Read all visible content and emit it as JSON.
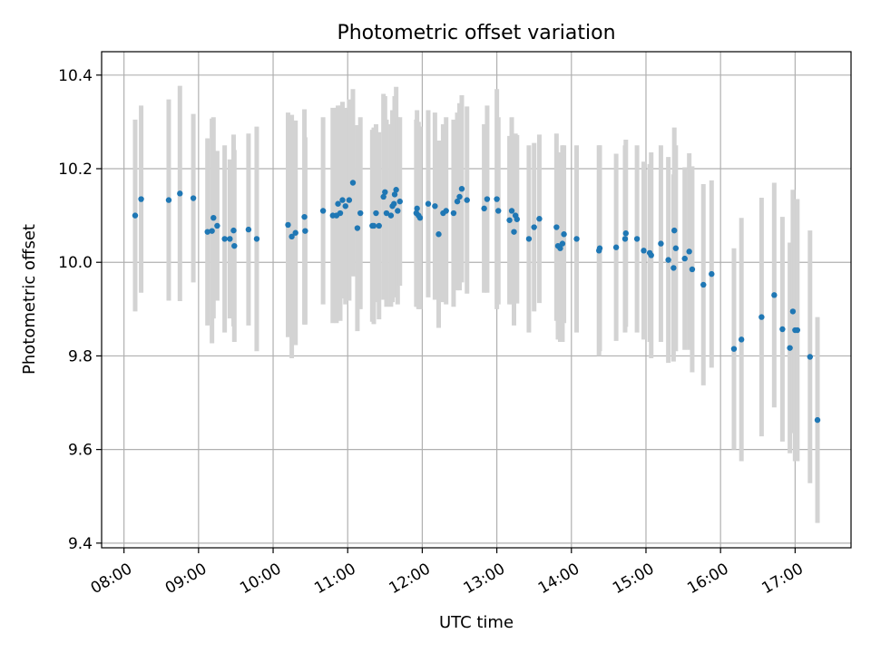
{
  "chart_data": {
    "type": "scatter",
    "title": "Photometric offset variation",
    "xlabel": "UTC time",
    "ylabel": "Photometric offset",
    "x_unit": "hours UTC",
    "xlim": [
      7.7,
      17.75
    ],
    "ylim": [
      9.39,
      10.45
    ],
    "xticks": [
      8,
      9,
      10,
      11,
      12,
      13,
      14,
      15,
      16,
      17
    ],
    "xtick_labels": [
      "08:00",
      "09:00",
      "10:00",
      "11:00",
      "12:00",
      "13:00",
      "14:00",
      "15:00",
      "16:00",
      "17:00"
    ],
    "yticks": [
      9.4,
      9.6,
      9.8,
      10.0,
      10.2,
      10.4
    ],
    "ytick_labels": [
      "9.4",
      "9.6",
      "9.8",
      "10.0",
      "10.2",
      "10.4"
    ],
    "grid": true,
    "colors": {
      "points": "#1f77b4",
      "errorbars": "#d3d3d3",
      "grid": "#b0b0b0",
      "axes": "#000000"
    },
    "series": [
      {
        "x": [
          8.15,
          8.23,
          8.6,
          8.75,
          8.93,
          9.12,
          9.18,
          9.2,
          9.25,
          9.35,
          9.42,
          9.47,
          9.48,
          9.67,
          9.78,
          10.2,
          10.25,
          10.3,
          10.42,
          10.43,
          10.67,
          10.8,
          10.85,
          10.87,
          10.9,
          10.93,
          10.97,
          11.02,
          11.07,
          11.13,
          11.17,
          11.33,
          11.35,
          11.38,
          11.42,
          11.48,
          11.5,
          11.52,
          11.58,
          11.6,
          11.62,
          11.63,
          11.65,
          11.67,
          11.7,
          11.92,
          11.93,
          11.95,
          11.97,
          12.08,
          12.17,
          12.22,
          12.28,
          12.32,
          12.42,
          12.47,
          12.5,
          12.53,
          12.6,
          12.83,
          12.87,
          13.0,
          13.02,
          13.17,
          13.2,
          13.23,
          13.25,
          13.27,
          13.43,
          13.5,
          13.57,
          13.8,
          13.82,
          13.85,
          13.88,
          13.9,
          14.07,
          14.37,
          14.38,
          14.6,
          14.72,
          14.73,
          14.88,
          14.97,
          15.05,
          15.07,
          15.2,
          15.3,
          15.37,
          15.38,
          15.4,
          15.52,
          15.58,
          15.62,
          15.77,
          15.88,
          16.18,
          16.28,
          16.55,
          16.72,
          16.83,
          16.93,
          16.97,
          17.0,
          17.03,
          17.2,
          17.3
        ],
        "y": [
          10.1,
          10.135,
          10.133,
          10.147,
          10.137,
          10.065,
          10.067,
          10.095,
          10.078,
          10.05,
          10.05,
          10.068,
          10.035,
          10.07,
          10.05,
          10.08,
          10.055,
          10.063,
          10.097,
          10.067,
          10.11,
          10.1,
          10.1,
          10.125,
          10.105,
          10.133,
          10.12,
          10.133,
          10.17,
          10.073,
          10.105,
          10.078,
          10.078,
          10.105,
          10.078,
          10.14,
          10.15,
          10.105,
          10.1,
          10.12,
          10.125,
          10.145,
          10.155,
          10.11,
          10.13,
          10.105,
          10.115,
          10.1,
          10.095,
          10.125,
          10.12,
          10.06,
          10.105,
          10.11,
          10.105,
          10.13,
          10.14,
          10.157,
          10.133,
          10.115,
          10.135,
          10.135,
          10.11,
          10.09,
          10.11,
          10.065,
          10.1,
          10.092,
          10.05,
          10.075,
          10.093,
          10.075,
          10.035,
          10.03,
          10.04,
          10.06,
          10.05,
          10.025,
          10.03,
          10.032,
          10.05,
          10.062,
          10.05,
          10.025,
          10.02,
          10.015,
          10.04,
          10.005,
          9.988,
          10.068,
          10.03,
          10.008,
          10.023,
          9.985,
          9.952,
          9.975,
          9.815,
          9.835,
          9.883,
          9.93,
          9.857,
          9.817,
          9.895,
          9.855,
          9.855,
          9.798,
          9.663
        ],
        "err": [
          0.205,
          0.2,
          0.215,
          0.23,
          0.18,
          0.2,
          0.24,
          0.215,
          0.16,
          0.2,
          0.17,
          0.205,
          0.205,
          0.205,
          0.24,
          0.24,
          0.26,
          0.24,
          0.23,
          0.2,
          0.2,
          0.23,
          0.23,
          0.21,
          0.23,
          0.21,
          0.21,
          0.215,
          0.2,
          0.22,
          0.205,
          0.205,
          0.21,
          0.19,
          0.2,
          0.22,
          0.205,
          0.2,
          0.195,
          0.205,
          0.2,
          0.21,
          0.22,
          0.2,
          0.18,
          0.2,
          0.21,
          0.2,
          0.195,
          0.2,
          0.2,
          0.2,
          0.19,
          0.2,
          0.2,
          0.19,
          0.2,
          0.2,
          0.2,
          0.18,
          0.2,
          0.235,
          0.2,
          0.18,
          0.2,
          0.2,
          0.175,
          0.18,
          0.2,
          0.18,
          0.18,
          0.2,
          0.2,
          0.2,
          0.21,
          0.19,
          0.2,
          0.225,
          0.22,
          0.2,
          0.2,
          0.2,
          0.2,
          0.19,
          0.19,
          0.22,
          0.21,
          0.22,
          0.2,
          0.22,
          0.22,
          0.195,
          0.21,
          0.22,
          0.215,
          0.2,
          0.215,
          0.26,
          0.255,
          0.24,
          0.24,
          0.225,
          0.26,
          0.28,
          0.28,
          0.27,
          0.22
        ]
      }
    ]
  }
}
